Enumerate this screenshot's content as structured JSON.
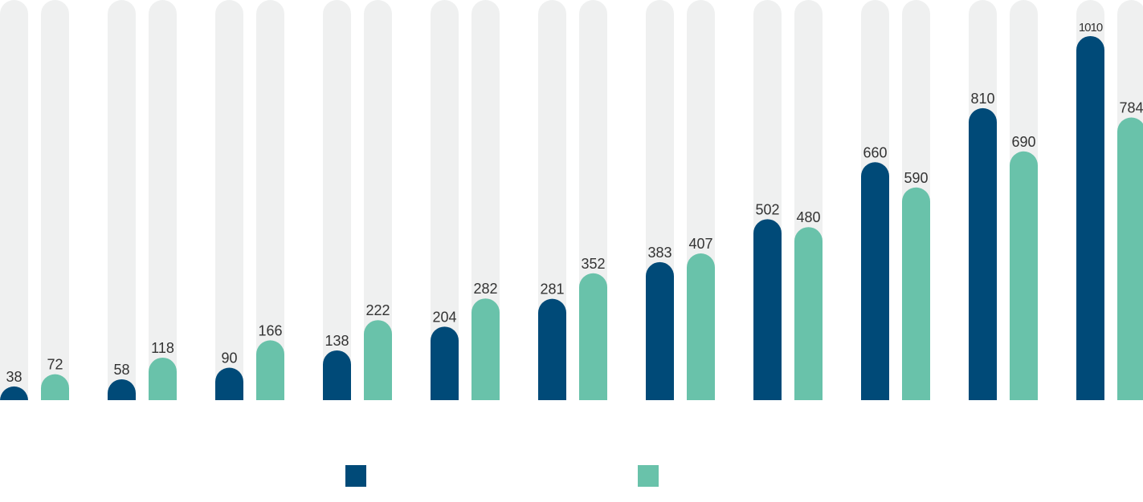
{
  "chart_data": {
    "type": "bar",
    "title": "",
    "xlabel": "",
    "ylabel": "",
    "ylim": [
      0,
      1110
    ],
    "grid": false,
    "legend_placement": "bottom-center",
    "categories": [
      "",
      "",
      "",
      "",
      "",
      "",
      "",
      "",
      "",
      "",
      ""
    ],
    "series": [
      {
        "values": [
          38,
          58,
          90,
          138,
          204,
          281,
          383,
          502,
          660,
          810,
          1010
        ]
      },
      {
        "values": [
          72,
          118,
          166,
          222,
          282,
          352,
          407,
          480,
          590,
          690,
          784
        ]
      }
    ]
  },
  "colors": {
    "series_1": "#004a78",
    "series_2": "#69c2aa",
    "track": "#eff0f0",
    "label": "#333333"
  }
}
